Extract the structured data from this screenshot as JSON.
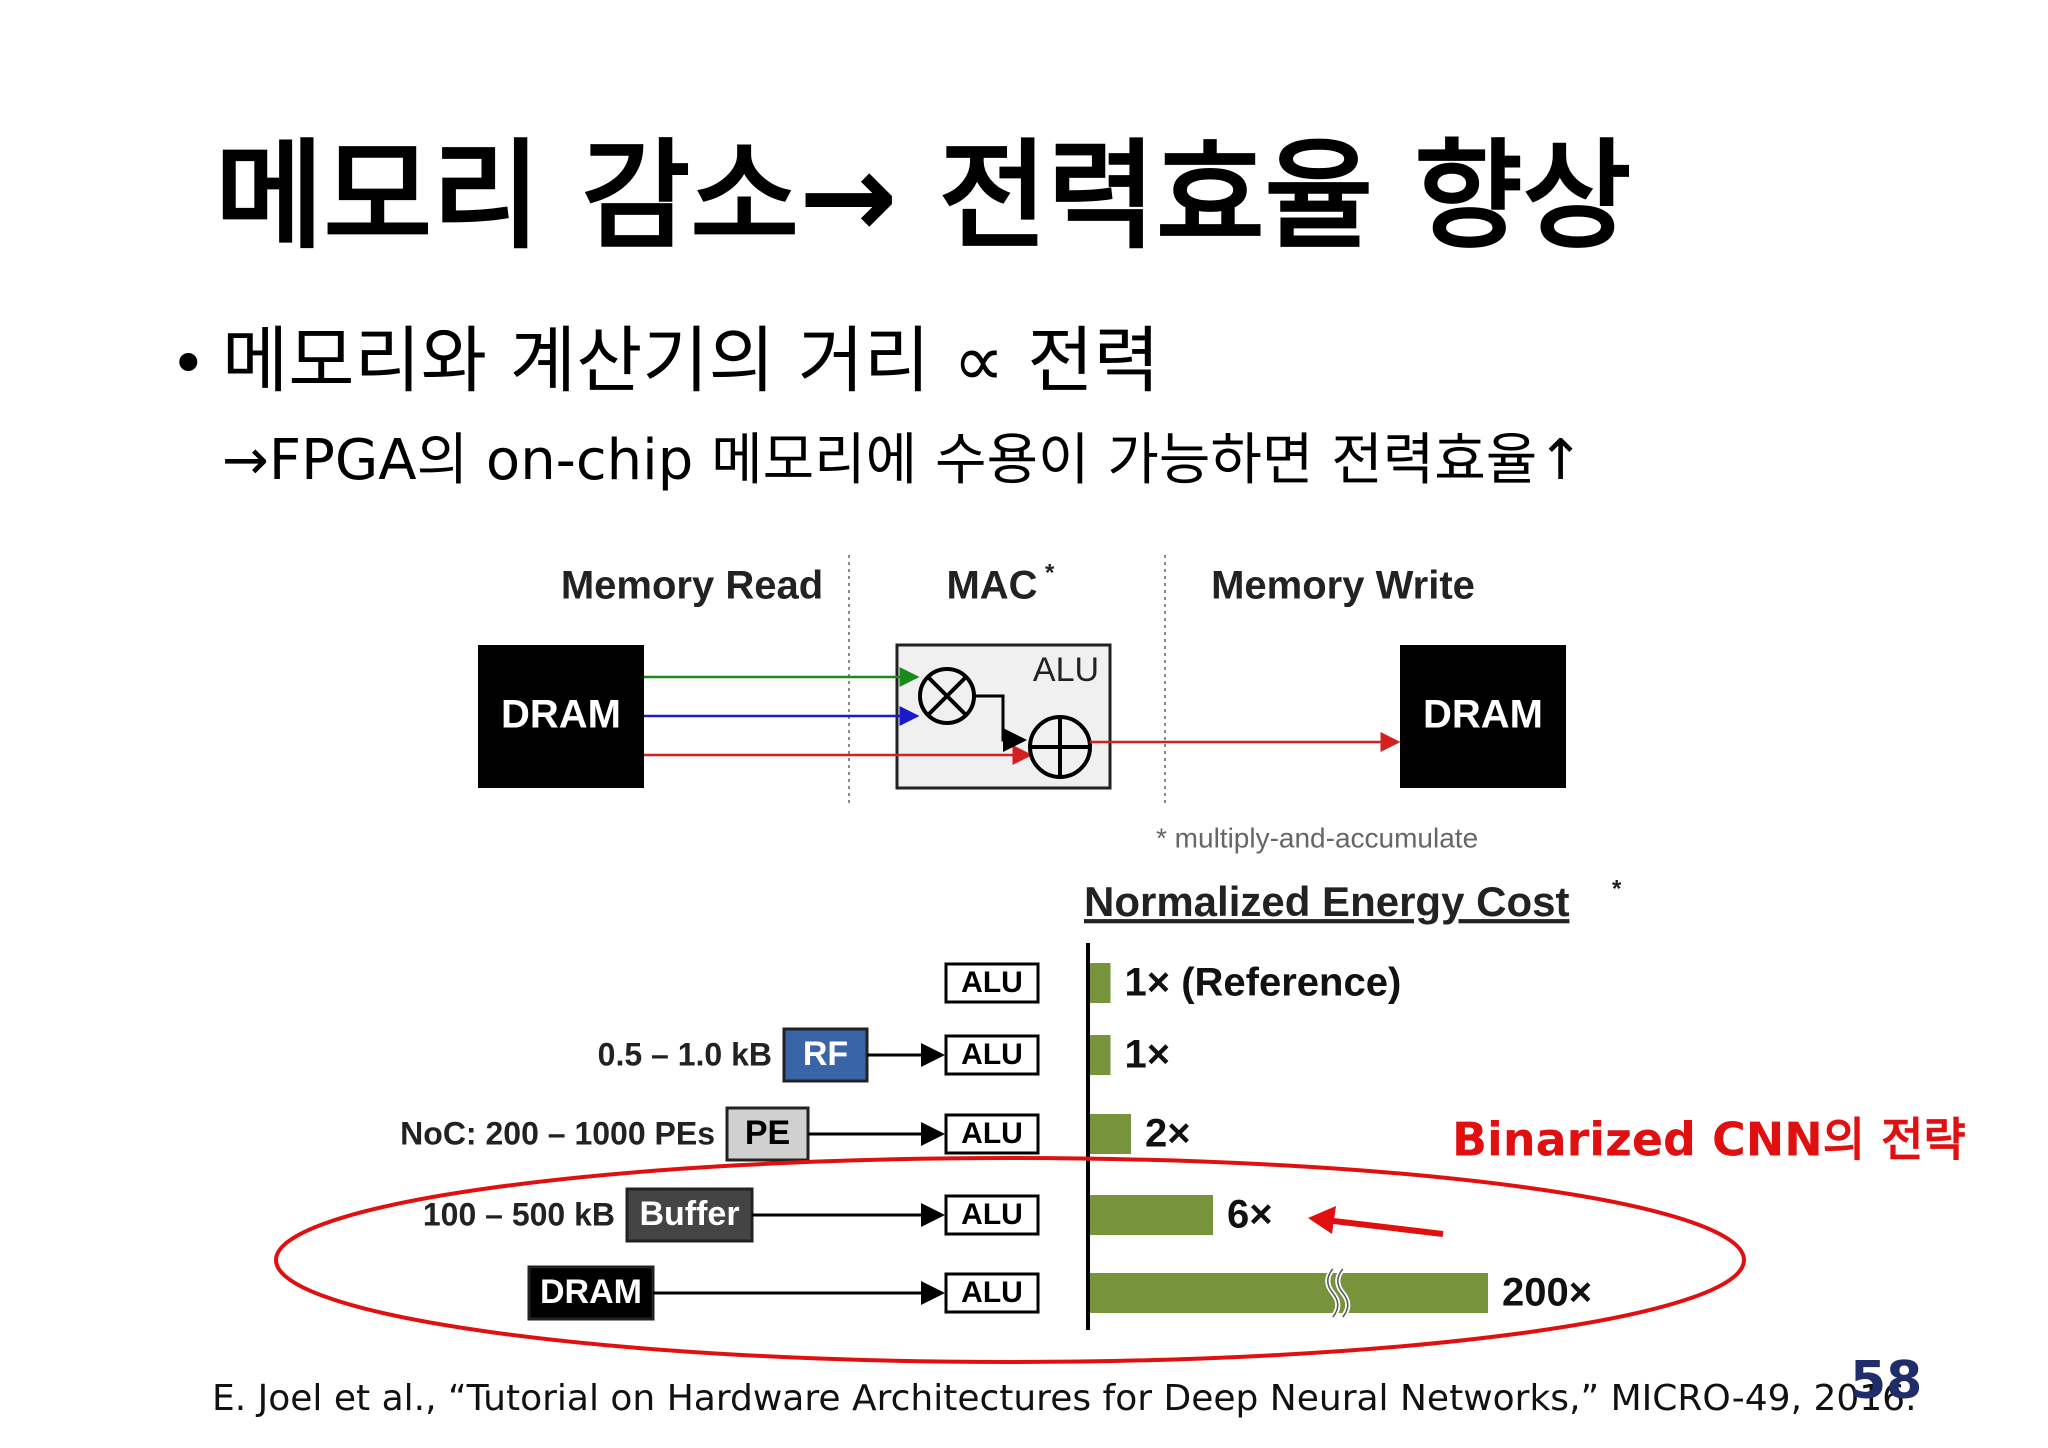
{
  "header": {
    "title": "메모리 감소→ 전력효율 향상"
  },
  "bullets": [
    {
      "marker": "•",
      "text": "메모리와 계산기의 거리 ∝ 전력"
    }
  ],
  "subline": "→FPGA의 on-chip 메모리에 수용이 가능하면 전력효율↑",
  "diagram": {
    "memory_read": "Memory Read",
    "mac": "MAC",
    "mac_mark": "*",
    "memory_write": "Memory Write",
    "source": "DRAM",
    "unit": "ALU",
    "target": "DRAM",
    "footnote": "* multiply-and-accumulate"
  },
  "chart_data": {
    "type": "bar",
    "title": "Normalized Energy Cost",
    "title_mark": "*",
    "categories": [
      null,
      "RF",
      "PE",
      "Buffer",
      "DRAM"
    ],
    "sizes": [
      null,
      "0.5 – 1.0 kB",
      "NoC: 200 – 1000 PEs",
      "100 – 500 kB",
      null
    ],
    "unit_label": "ALU",
    "values": [
      1,
      1,
      2,
      6,
      200
    ],
    "value_labels": [
      "1× (Reference)",
      "1×",
      "2×",
      "6×",
      "200×"
    ],
    "color": "#77933c",
    "axis_break": true
  },
  "annotation": "Binarized CNN의 전략",
  "citation": "E. Joel et al., “Tutorial on Hardware Architectures for Deep Neural Networks,” MICRO-49, 2016.",
  "page_number": "58"
}
